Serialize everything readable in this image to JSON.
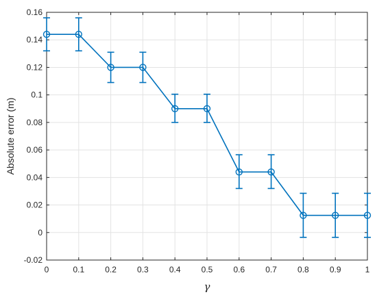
{
  "chart_data": {
    "type": "line",
    "title": "",
    "xlabel": "γ",
    "ylabel": "Absolute error (m)",
    "xlim": [
      0,
      1
    ],
    "ylim": [
      -0.02,
      0.16
    ],
    "x_ticks": [
      0,
      0.1,
      0.2,
      0.3,
      0.4,
      0.5,
      0.6,
      0.7,
      0.8,
      0.9,
      1
    ],
    "x_tick_labels": [
      "0",
      "0.1",
      "0.2",
      "0.3",
      "0.4",
      "0.5",
      "0.6",
      "0.7",
      "0.8",
      "0.9",
      "1"
    ],
    "y_ticks": [
      -0.02,
      0,
      0.02,
      0.04,
      0.06,
      0.08,
      0.1,
      0.12,
      0.14,
      0.16
    ],
    "y_tick_labels": [
      "-0.02",
      "0",
      "0.02",
      "0.04",
      "0.06",
      "0.08",
      "0.1",
      "0.12",
      "0.14",
      "0.16"
    ],
    "grid": true,
    "line_style": "step",
    "marker": "circle",
    "color": "#0072BD",
    "series": [
      {
        "x": [
          0,
          0.1,
          0.2,
          0.3,
          0.4,
          0.5,
          0.6,
          0.7,
          0.8,
          0.9,
          1
        ],
        "y": [
          0.144,
          0.144,
          0.12,
          0.12,
          0.09,
          0.09,
          0.044,
          0.044,
          0.0125,
          0.0125,
          0.0125
        ],
        "error_low": [
          0.132,
          0.132,
          0.109,
          0.109,
          0.08,
          0.08,
          0.032,
          0.032,
          -0.0035,
          -0.0035,
          -0.0035
        ],
        "error_high": [
          0.156,
          0.156,
          0.131,
          0.131,
          0.1005,
          0.1005,
          0.0565,
          0.0565,
          0.0285,
          0.0285,
          0.0285
        ]
      }
    ]
  }
}
